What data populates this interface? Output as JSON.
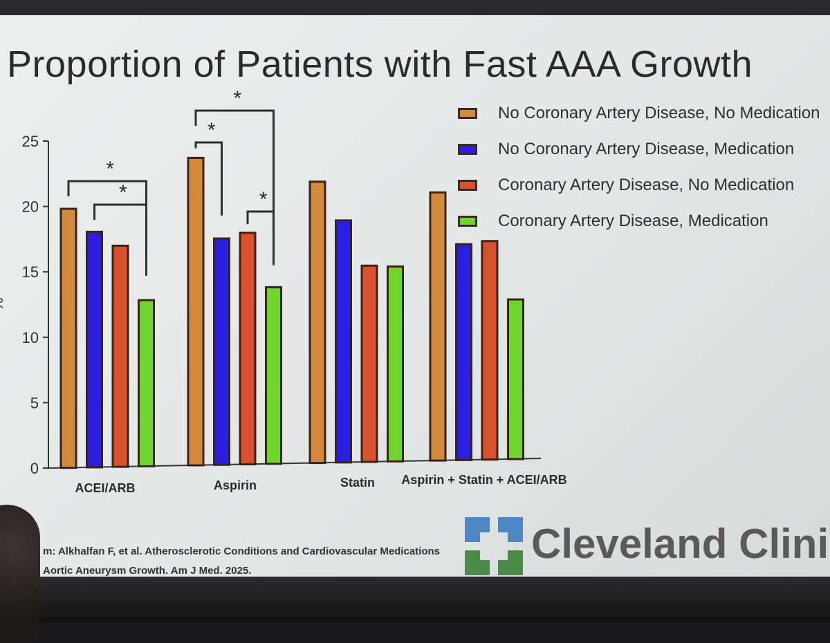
{
  "slide": {
    "title": "Proportion of Patients with Fast AAA Growth",
    "citation_line1": "m: Alkhalfan F, et al. Atherosclerotic Conditions and Cardiovascular Medications",
    "citation_line2": "Aortic Aneurysm Growth. Am J Med. 2025.",
    "logo_text": "Cleveland Clinic"
  },
  "legend": [
    {
      "label": "No Coronary Artery Disease, No Medication",
      "color": "#d38a3e"
    },
    {
      "label": "No Coronary Artery Disease, Medication",
      "color": "#2a1fe0"
    },
    {
      "label": "Coronary Artery Disease, No Medication",
      "color": "#d9512f"
    },
    {
      "label": "Coronary Artery Disease, Medication",
      "color": "#6fd42c"
    }
  ],
  "chart_data": {
    "type": "bar",
    "title": "Proportion of Patients with Fast AAA Growth",
    "xlabel": "",
    "ylabel": "%",
    "ylim": [
      0,
      25
    ],
    "yticks": [
      "0",
      "5",
      "10",
      "15",
      "20",
      "25"
    ],
    "categories": [
      "ACEI/ARB",
      "Aspirin",
      "Statin",
      "Aspirin + Statin + ACEI/ARB"
    ],
    "series": [
      {
        "name": "No Coronary Artery Disease, No Medication",
        "color": "#d38a3e",
        "values": [
          19.8,
          23.5,
          21.5,
          20.5
        ]
      },
      {
        "name": "No Coronary Artery Disease, Medication",
        "color": "#2a1fe0",
        "values": [
          18.0,
          17.3,
          18.5,
          16.5
        ]
      },
      {
        "name": "Coronary Artery Disease, No Medication",
        "color": "#d9512f",
        "values": [
          16.9,
          17.7,
          15.0,
          16.7
        ]
      },
      {
        "name": "Coronary Artery Disease, Medication",
        "color": "#6fd42c",
        "values": [
          12.7,
          13.5,
          14.9,
          12.2
        ]
      }
    ],
    "significance": [
      {
        "category": 0,
        "from_series": 0,
        "to_series": 3,
        "label": "*"
      },
      {
        "category": 0,
        "from_series": 1,
        "to_series": 3,
        "label": "*"
      },
      {
        "category": 1,
        "from_series": 0,
        "to_series": 1,
        "label": "*"
      },
      {
        "category": 1,
        "from_series": 0,
        "to_series": 3,
        "label": "*"
      },
      {
        "category": 1,
        "from_series": 2,
        "to_series": 3,
        "label": "*"
      }
    ],
    "legend_position": "top-right",
    "grid": false
  }
}
